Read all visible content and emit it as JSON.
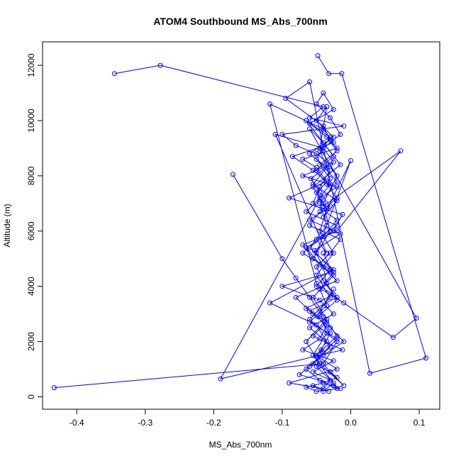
{
  "chart_data": {
    "type": "line",
    "title": "ATOM4 Southbound MS_Abs_700nm",
    "xlabel": "MS_Abs_700nm",
    "ylabel": "Altitude (m)",
    "xlim": [
      -0.45,
      0.13
    ],
    "ylim": [
      -450,
      12850
    ],
    "x_ticks": [
      -0.4,
      -0.3,
      -0.2,
      -0.1,
      0.0,
      0.1
    ],
    "x_tick_labels": [
      "-0.4",
      "-0.3",
      "-0.2",
      "-0.1",
      "0.0",
      "0.1"
    ],
    "y_ticks": [
      0,
      2000,
      4000,
      6000,
      8000,
      10000,
      12000
    ],
    "y_tick_labels": [
      "0",
      "2000",
      "4000",
      "6000",
      "8000",
      "10000",
      "12000"
    ],
    "series_color": "#0000ff",
    "marker": "open-circle",
    "grid": false,
    "series": [
      {
        "x": [
          -0.048,
          -0.032,
          -0.013,
          0.11,
          0.028,
          -0.06,
          -0.095,
          -0.04,
          -0.03,
          -0.02,
          -0.07,
          -0.05,
          -0.035,
          -0.09,
          -0.012,
          -0.025,
          -0.065,
          -0.045,
          -0.02,
          -0.08,
          -0.055,
          -0.03,
          -0.01,
          -0.04,
          -0.06,
          -0.075,
          -0.045,
          -0.025,
          -0.015,
          -0.05,
          -0.065,
          -0.04,
          -0.02,
          -0.03,
          -0.055,
          -0.04,
          -0.02,
          -0.06,
          -0.035,
          -0.045,
          -0.025,
          -0.05,
          0.0,
          -0.04,
          -0.02,
          -0.055,
          -0.035,
          -0.045,
          -0.015,
          -0.03,
          -0.05,
          -0.04,
          -0.025,
          -0.06,
          -0.035,
          -0.02,
          -0.045,
          -0.03,
          -0.05,
          -0.04,
          0.073,
          -0.02,
          -0.07,
          -0.055,
          -0.03,
          -0.1,
          -0.045,
          -0.025,
          -0.06,
          -0.035,
          -0.05,
          -0.02,
          -0.09,
          -0.04,
          -0.03,
          -0.055,
          -0.025,
          -0.07,
          -0.045,
          -0.035,
          -0.06,
          -0.02,
          -0.05,
          -0.118,
          -0.04,
          -0.025,
          -0.085,
          -0.055,
          -0.03,
          -0.045,
          -0.065,
          -0.02,
          -0.05,
          -0.035,
          -0.11,
          -0.04,
          -0.025,
          -0.058,
          -0.045,
          -0.03,
          -0.06,
          -0.015,
          -0.053,
          -0.04,
          -0.035,
          -0.02,
          -0.048,
          -0.03,
          -0.043,
          -0.05,
          -0.025,
          -0.04,
          -0.055,
          -0.032
        ],
        "y": [
          12350,
          11700,
          11700,
          1400,
          850,
          11400,
          10800,
          9800,
          9300,
          9000,
          8600,
          8300,
          7800,
          7200,
          6600,
          6000,
          5400,
          4800,
          4200,
          3600,
          3000,
          2500,
          2000,
          1500,
          1100,
          800,
          600,
          400,
          300,
          200,
          350,
          500,
          700,
          900,
          1200,
          1600,
          2100,
          2700,
          3300,
          3900,
          4500,
          5200,
          8550,
          6500,
          7100,
          7700,
          8300,
          8900,
          9500,
          10100,
          10600,
          11000,
          10400,
          9900,
          9400,
          8900,
          8400,
          7900,
          7400,
          6900,
          8900,
          6000,
          5500,
          5000,
          4500,
          4000,
          3500,
          3000,
          2500,
          2000,
          1500,
          1000,
          500,
          300,
          600,
          900,
          1300,
          1700,
          2100,
          2600,
          3100,
          3600,
          4100,
          10600,
          9700,
          9200,
          8700,
          8200,
          7700,
          7200,
          6700,
          6200,
          5700,
          5200,
          9500,
          9000,
          8500,
          7900,
          7400,
          6900,
          6400,
          5900,
          5300,
          4700,
          4100,
          3500,
          2900,
          2300,
          1700,
          1100,
          500,
          200,
          400,
          200
        ]
      },
      {
        "x": [
          -0.345,
          -0.278,
          -0.04,
          -0.06,
          -0.01,
          -0.1,
          -0.08,
          -0.05,
          -0.03,
          -0.07,
          -0.02,
          -0.045,
          -0.19,
          -0.012,
          -0.055,
          -0.035,
          -0.065,
          -0.025,
          -0.04,
          -0.05,
          -0.03,
          -0.015,
          -0.06,
          -0.045,
          -0.02,
          -0.035,
          -0.05,
          -0.025,
          -0.04,
          -0.06,
          0.096,
          0.062,
          -0.01,
          -0.05,
          -0.03,
          -0.07,
          -0.04,
          -0.02,
          -0.055,
          -0.045,
          -0.03,
          -0.06,
          -0.025,
          -0.05,
          -0.035,
          -0.045,
          -0.02,
          -0.04,
          -0.03,
          -0.055
        ],
        "y": [
          11700,
          12000,
          10500,
          10100,
          9800,
          9500,
          9100,
          8800,
          8400,
          8000,
          7600,
          7200,
          650,
          1700,
          2200,
          2700,
          3200,
          3700,
          4200,
          4700,
          5200,
          5700,
          6200,
          6700,
          7200,
          7700,
          8200,
          8700,
          9200,
          9700,
          2850,
          2150,
          3400,
          4000,
          4600,
          5200,
          5800,
          6400,
          7000,
          7600,
          8200,
          8800,
          9400,
          10000,
          10500,
          9000,
          8000,
          7000,
          6000,
          5000
        ]
      },
      {
        "x": [
          -0.433,
          -0.04,
          -0.02,
          -0.06,
          -0.03,
          -0.05,
          -0.025,
          -0.045,
          -0.035,
          -0.055,
          -0.015,
          -0.04,
          -0.065,
          -0.03,
          -0.05,
          -0.02,
          -0.045,
          -0.035,
          -0.06,
          -0.025,
          -0.118,
          -0.05,
          -0.03,
          -0.065,
          -0.04,
          -0.02,
          -0.055,
          -0.035,
          -0.045,
          -0.025
        ],
        "y": [
          330,
          1200,
          2000,
          2800,
          3600,
          4400,
          5200,
          6000,
          6800,
          7600,
          8400,
          9200,
          10000,
          9400,
          8600,
          7800,
          7000,
          6200,
          5400,
          4600,
          3400,
          2600,
          1800,
          1000,
          500,
          300,
          1500,
          2300,
          3100,
          3900
        ]
      },
      {
        "x": [
          -0.172,
          -0.1,
          -0.08,
          -0.06,
          -0.04,
          -0.02,
          -0.05,
          -0.03,
          -0.01,
          -0.045,
          -0.065,
          -0.035,
          -0.055,
          -0.025,
          -0.04
        ],
        "y": [
          8050,
          5000,
          4300,
          3600,
          2900,
          2200,
          1500,
          900,
          400,
          1200,
          2000,
          2800,
          3600,
          4400,
          5200
        ]
      }
    ]
  }
}
